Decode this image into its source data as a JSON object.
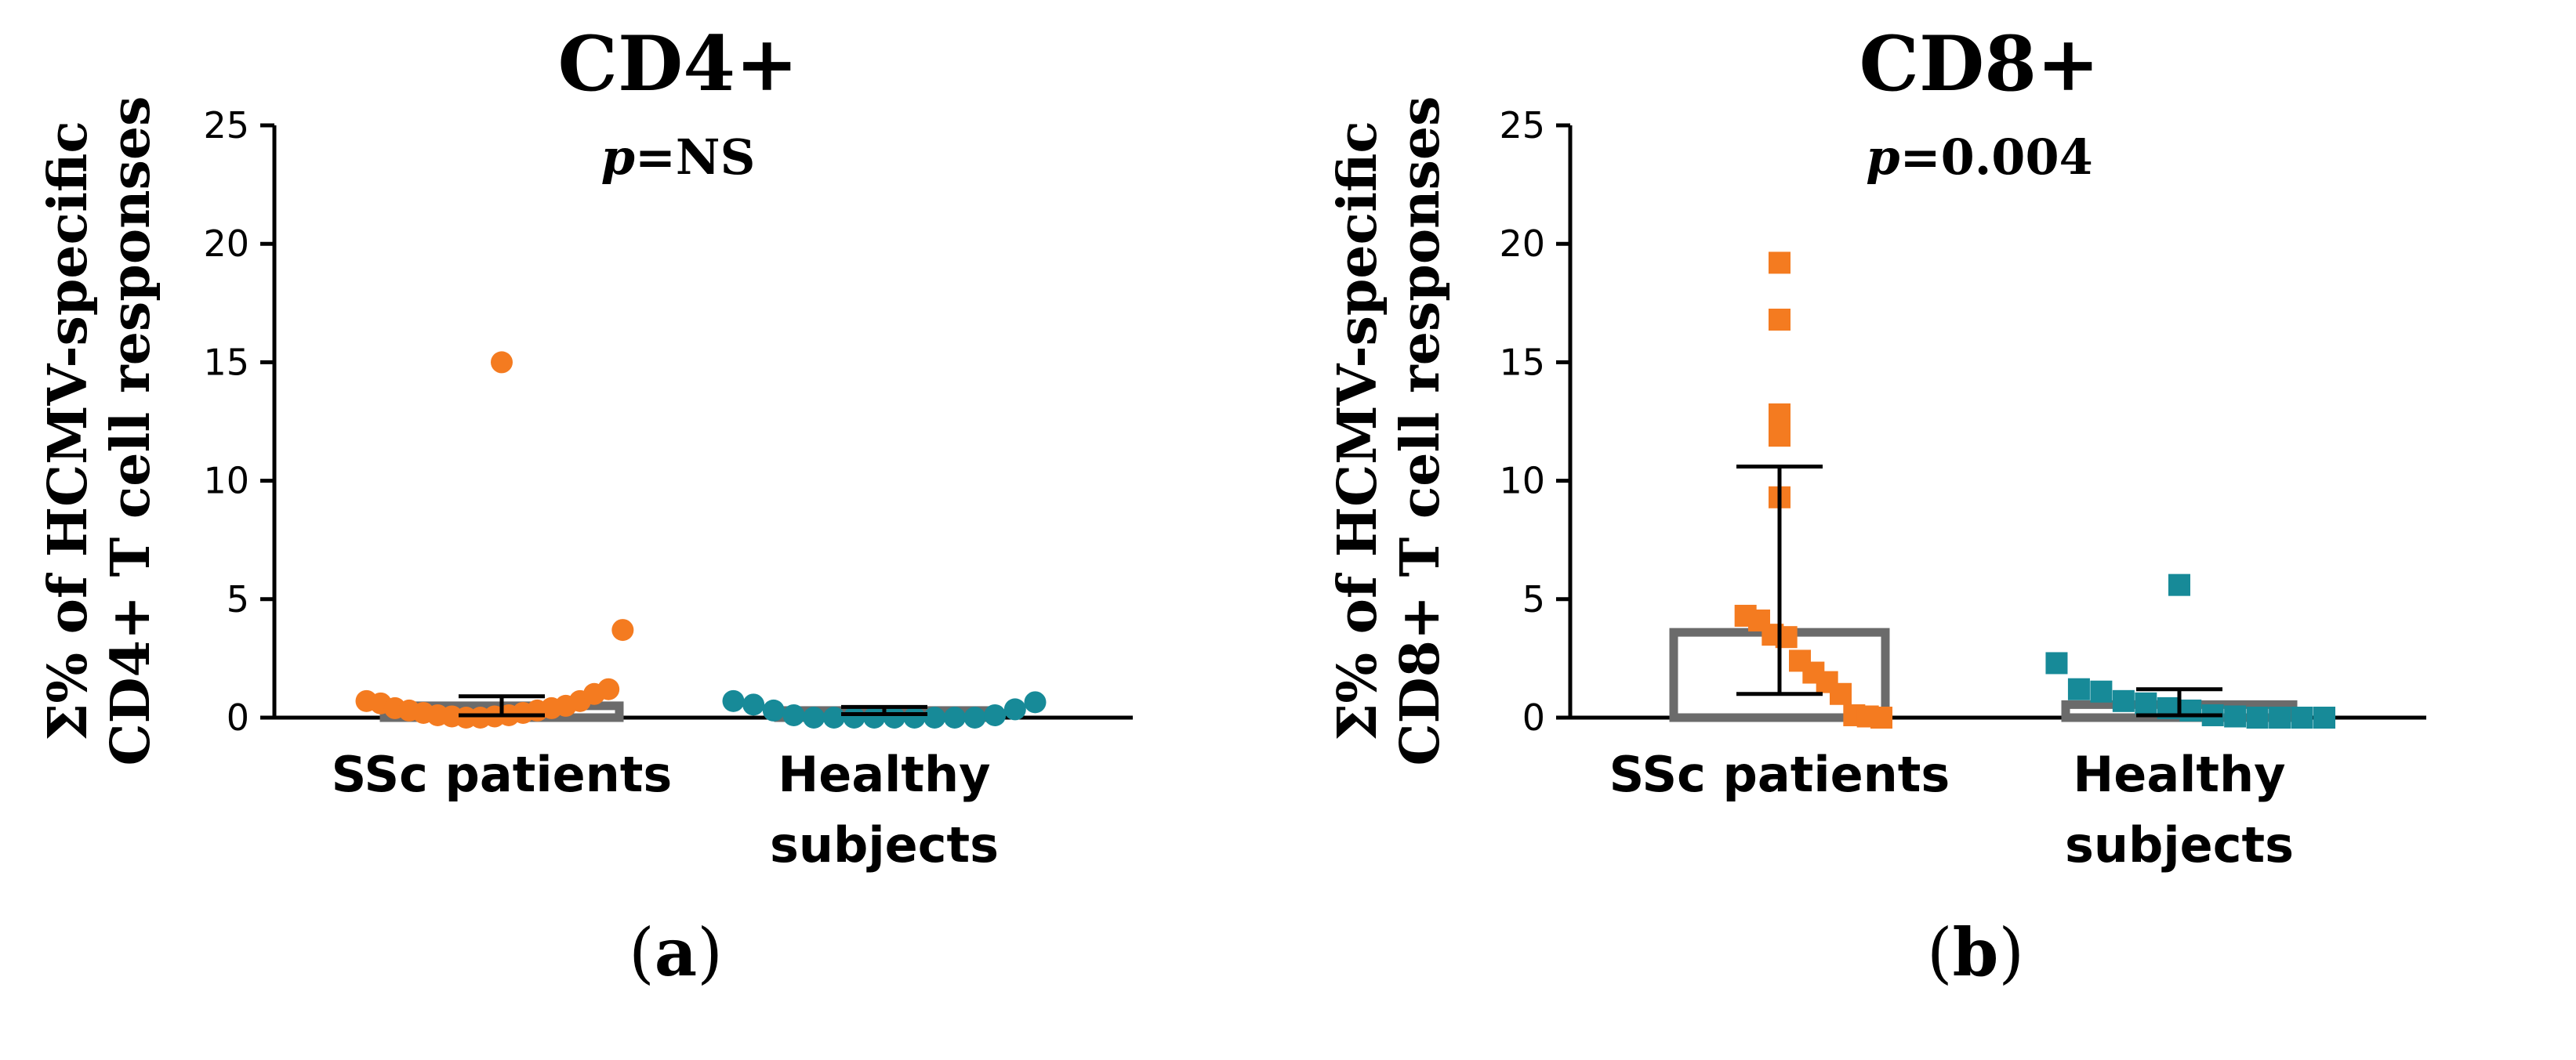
{
  "colors": {
    "ssc": "#f47b20",
    "healthy": "#178a98",
    "bar": "#6b6b6b"
  },
  "chart_data": [
    {
      "type": "bar",
      "title": "CD4+",
      "p_label": "p",
      "p_value": "=NS",
      "ylabel_line1": "Σ% of HCMV-specific",
      "ylabel_line2": "CD4+ T cell responses",
      "ylim": [
        0,
        25
      ],
      "yticks": [
        0,
        5,
        10,
        15,
        20,
        25
      ],
      "ytick_labels": [
        "0",
        "5",
        "10",
        "15",
        "20",
        "25"
      ],
      "marker": "circle",
      "panel_label": "a",
      "categories": [
        {
          "label_lines": [
            "SSc patients"
          ],
          "mean": 0.5,
          "error_upper": 0.9,
          "error_lower": 0.1,
          "points": [
            0.7,
            0.6,
            0.4,
            0.3,
            0.2,
            0.1,
            0.05,
            0.0,
            0.0,
            0.05,
            0.1,
            0.2,
            0.3,
            0.4,
            0.5,
            0.7,
            1.0,
            1.2,
            3.7,
            15.0
          ]
        },
        {
          "label_lines": [
            "Healthy",
            "subjects"
          ],
          "mean": 0.3,
          "error_upper": 0.45,
          "error_lower": 0.15,
          "points": [
            0.7,
            0.55,
            0.3,
            0.1,
            0.0,
            0.0,
            0.0,
            0.0,
            0.0,
            0.0,
            0.0,
            0.0,
            0.0,
            0.1,
            0.35,
            0.65
          ]
        }
      ]
    },
    {
      "type": "bar",
      "title": "CD8+",
      "p_label": "p",
      "p_value": "=0.004",
      "ylabel_line1": "Σ% of HCMV-specific",
      "ylabel_line2": "CD8+ T cell responses",
      "ylim": [
        0,
        25
      ],
      "yticks": [
        0,
        5,
        10,
        15,
        20,
        25
      ],
      "ytick_labels": [
        "0",
        "5",
        "10",
        "15",
        "20",
        "25"
      ],
      "marker": "square",
      "panel_label": "b",
      "categories": [
        {
          "label_lines": [
            "SSc patients"
          ],
          "mean": 3.6,
          "error_upper": 10.6,
          "error_lower": 1.0,
          "points": [
            19.2,
            16.8,
            12.8,
            11.9,
            9.3,
            4.3,
            4.1,
            3.5,
            3.4,
            2.4,
            1.9,
            1.5,
            1.0,
            0.1,
            0.05,
            0.0
          ]
        },
        {
          "label_lines": [
            "Healthy",
            "subjects"
          ],
          "mean": 0.55,
          "error_upper": 1.2,
          "error_lower": 0.1,
          "points": [
            5.6,
            2.3,
            1.2,
            1.1,
            0.7,
            0.6,
            0.4,
            0.3,
            0.1,
            0.05,
            0.0,
            0.0,
            0.0,
            0.0
          ]
        }
      ]
    }
  ]
}
